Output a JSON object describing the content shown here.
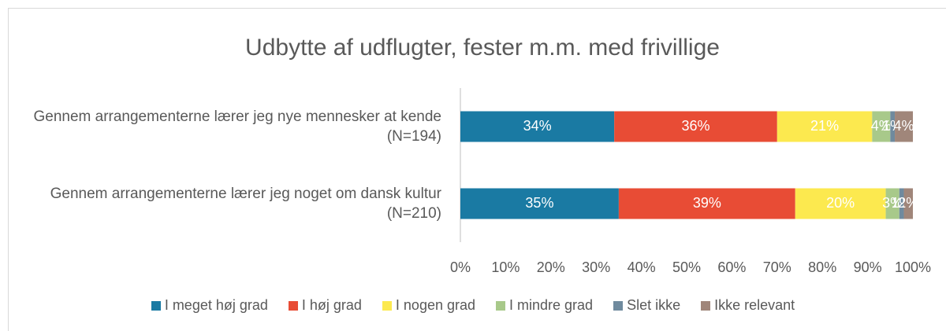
{
  "chart_data": {
    "type": "stacked_bar_horizontal",
    "title": "Udbytte af udflugter, fester m.m. med frivillige",
    "categories": [
      "Gennem arrangementerne lærer jeg nye mennesker at kende (N=194)",
      "Gennem arrangementerne lærer jeg noget om dansk kultur (N=210)"
    ],
    "series": [
      {
        "name": "I meget høj grad",
        "color": "#1a7aa3",
        "values": [
          34,
          35
        ],
        "value_labels": [
          "34%",
          "35%"
        ]
      },
      {
        "name": "I høj grad",
        "color": "#e84c35",
        "values": [
          36,
          39
        ],
        "value_labels": [
          "36%",
          "39%"
        ]
      },
      {
        "name": "I nogen grad",
        "color": "#fce94f",
        "values": [
          21,
          20
        ],
        "value_labels": [
          "21%",
          "20%"
        ]
      },
      {
        "name": "I mindre grad",
        "color": "#a8c98a",
        "values": [
          4,
          3
        ],
        "value_labels": [
          "4%",
          "3%"
        ]
      },
      {
        "name": "Slet ikke",
        "color": "#6f8a9e",
        "values": [
          1,
          1
        ],
        "value_labels": [
          "1%",
          "1%"
        ]
      },
      {
        "name": "Ikke relevant",
        "color": "#a0867a",
        "values": [
          4,
          2
        ],
        "value_labels": [
          "4%",
          "2%"
        ]
      }
    ],
    "xlim": [
      0,
      100
    ],
    "xticks": [
      {
        "value": 0,
        "label": "0%"
      },
      {
        "value": 10,
        "label": "10%"
      },
      {
        "value": 20,
        "label": "20%"
      },
      {
        "value": 30,
        "label": "30%"
      },
      {
        "value": 40,
        "label": "40%"
      },
      {
        "value": 50,
        "label": "50%"
      },
      {
        "value": 60,
        "label": "60%"
      },
      {
        "value": 70,
        "label": "70%"
      },
      {
        "value": 80,
        "label": "80%"
      },
      {
        "value": 90,
        "label": "90%"
      },
      {
        "value": 100,
        "label": "100%"
      }
    ],
    "grid": false,
    "legend": "bottom"
  }
}
